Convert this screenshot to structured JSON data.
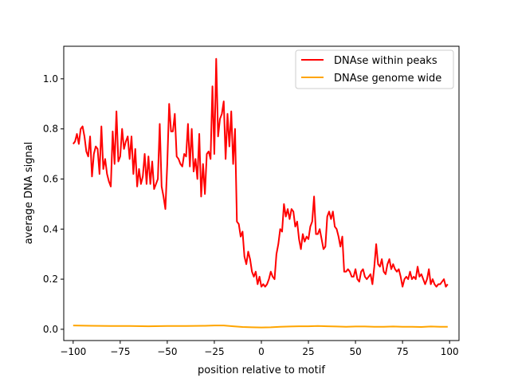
{
  "chart_data": {
    "type": "line",
    "title": "",
    "xlabel": "position relative to motif",
    "ylabel": "average DNA signal",
    "xlim": [
      -105,
      105
    ],
    "ylim": [
      -0.045,
      1.13
    ],
    "xticks": [
      -100,
      -75,
      -50,
      -25,
      0,
      25,
      50,
      75,
      100
    ],
    "xtick_labels": [
      "−100",
      "−75",
      "−50",
      "−25",
      "0",
      "25",
      "50",
      "75",
      "100"
    ],
    "yticks": [
      0.0,
      0.2,
      0.4,
      0.6,
      0.8,
      1.0
    ],
    "ytick_labels": [
      "0.0",
      "0.2",
      "0.4",
      "0.6",
      "0.8",
      "1.0"
    ],
    "grid": false,
    "legend_position": "top-right",
    "series": [
      {
        "name": "DNAse within peaks",
        "color": "#ff0000",
        "x": [
          -100,
          -99,
          -98,
          -97,
          -96,
          -95,
          -94,
          -93,
          -92,
          -91,
          -90,
          -89,
          -88,
          -87,
          -86,
          -85,
          -84,
          -83,
          -82,
          -81,
          -80,
          -79,
          -78,
          -77,
          -76,
          -75,
          -74,
          -73,
          -72,
          -71,
          -70,
          -69,
          -68,
          -67,
          -66,
          -65,
          -64,
          -63,
          -62,
          -61,
          -60,
          -59,
          -58,
          -57,
          -56,
          -55,
          -54,
          -53,
          -52,
          -51,
          -50,
          -49,
          -48,
          -47,
          -46,
          -45,
          -44,
          -43,
          -42,
          -41,
          -40,
          -39,
          -38,
          -37,
          -36,
          -35,
          -34,
          -33,
          -32,
          -31,
          -30,
          -29,
          -28,
          -27,
          -26,
          -25,
          -24,
          -23,
          -22,
          -21,
          -20,
          -19,
          -18,
          -17,
          -16,
          -15,
          -14,
          -13,
          -12,
          -11,
          -10,
          -9,
          -8,
          -7,
          -6,
          -5,
          -4,
          -3,
          -2,
          -1,
          0,
          1,
          2,
          3,
          4,
          5,
          6,
          7,
          8,
          9,
          10,
          11,
          12,
          13,
          14,
          15,
          16,
          17,
          18,
          19,
          20,
          21,
          22,
          23,
          24,
          25,
          26,
          27,
          28,
          29,
          30,
          31,
          32,
          33,
          34,
          35,
          36,
          37,
          38,
          39,
          40,
          41,
          42,
          43,
          44,
          45,
          46,
          47,
          48,
          49,
          50,
          51,
          52,
          53,
          54,
          55,
          56,
          57,
          58,
          59,
          60,
          61,
          62,
          63,
          64,
          65,
          66,
          67,
          68,
          69,
          70,
          71,
          72,
          73,
          74,
          75,
          76,
          77,
          78,
          79,
          80,
          81,
          82,
          83,
          84,
          85,
          86,
          87,
          88,
          89,
          90,
          91,
          92,
          93,
          94,
          95,
          96,
          97,
          98,
          99
        ],
        "y": [
          0.74,
          0.75,
          0.78,
          0.74,
          0.8,
          0.81,
          0.77,
          0.71,
          0.69,
          0.77,
          0.61,
          0.7,
          0.73,
          0.72,
          0.62,
          0.81,
          0.64,
          0.68,
          0.62,
          0.59,
          0.57,
          0.79,
          0.66,
          0.87,
          0.67,
          0.69,
          0.8,
          0.72,
          0.75,
          0.77,
          0.68,
          0.77,
          0.62,
          0.72,
          0.57,
          0.64,
          0.58,
          0.61,
          0.7,
          0.58,
          0.69,
          0.58,
          0.67,
          0.56,
          0.58,
          0.6,
          0.82,
          0.57,
          0.53,
          0.48,
          0.66,
          0.9,
          0.79,
          0.79,
          0.86,
          0.69,
          0.68,
          0.66,
          0.65,
          0.7,
          0.69,
          0.82,
          0.65,
          0.8,
          0.63,
          0.68,
          0.6,
          0.78,
          0.53,
          0.66,
          0.54,
          0.7,
          0.71,
          0.68,
          0.97,
          0.7,
          1.08,
          0.77,
          0.84,
          0.86,
          0.91,
          0.68,
          0.86,
          0.73,
          0.87,
          0.66,
          0.8,
          0.43,
          0.42,
          0.37,
          0.39,
          0.29,
          0.26,
          0.31,
          0.28,
          0.23,
          0.21,
          0.23,
          0.18,
          0.21,
          0.17,
          0.18,
          0.17,
          0.18,
          0.2,
          0.23,
          0.21,
          0.2,
          0.3,
          0.34,
          0.4,
          0.39,
          0.5,
          0.45,
          0.48,
          0.44,
          0.48,
          0.47,
          0.41,
          0.43,
          0.36,
          0.32,
          0.38,
          0.35,
          0.37,
          0.36,
          0.41,
          0.43,
          0.53,
          0.38,
          0.38,
          0.4,
          0.36,
          0.32,
          0.33,
          0.45,
          0.47,
          0.44,
          0.47,
          0.41,
          0.4,
          0.37,
          0.33,
          0.37,
          0.23,
          0.23,
          0.24,
          0.23,
          0.21,
          0.21,
          0.24,
          0.2,
          0.19,
          0.23,
          0.24,
          0.21,
          0.2,
          0.21,
          0.22,
          0.18,
          0.25,
          0.34,
          0.26,
          0.25,
          0.28,
          0.23,
          0.22,
          0.26,
          0.28,
          0.24,
          0.26,
          0.24,
          0.23,
          0.24,
          0.21,
          0.17,
          0.2,
          0.21,
          0.2,
          0.23,
          0.2,
          0.21,
          0.2,
          0.25,
          0.21,
          0.22,
          0.2,
          0.18,
          0.2,
          0.24,
          0.18,
          0.2,
          0.18,
          0.17,
          0.18,
          0.18,
          0.19,
          0.2,
          0.17,
          0.18
        ],
        "annotation_x_ticks": []
      },
      {
        "name": "DNAse genome wide",
        "color": "#ffa500",
        "x": [
          -100,
          -90,
          -80,
          -70,
          -60,
          -50,
          -40,
          -30,
          -25,
          -20,
          -15,
          -10,
          -5,
          0,
          5,
          10,
          15,
          20,
          25,
          30,
          35,
          40,
          45,
          50,
          55,
          60,
          65,
          70,
          75,
          80,
          85,
          90,
          95,
          99
        ],
        "y": [
          0.015,
          0.014,
          0.013,
          0.013,
          0.012,
          0.013,
          0.013,
          0.014,
          0.015,
          0.015,
          0.012,
          0.009,
          0.008,
          0.007,
          0.008,
          0.01,
          0.011,
          0.012,
          0.012,
          0.013,
          0.012,
          0.011,
          0.01,
          0.011,
          0.011,
          0.01,
          0.01,
          0.011,
          0.01,
          0.01,
          0.009,
          0.011,
          0.01,
          0.01
        ]
      }
    ]
  }
}
